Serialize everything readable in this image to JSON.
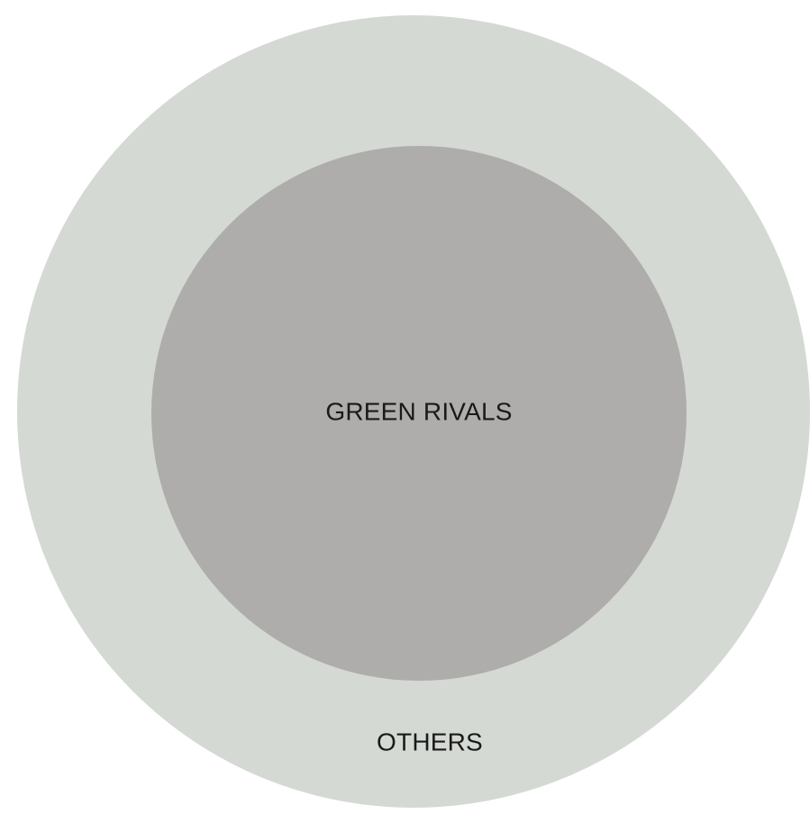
{
  "diagram": {
    "outer": {
      "label": "OTHERS",
      "color": "#d4d9d3"
    },
    "inner": {
      "label": "GREEN RIVALS",
      "color": "#aeadab"
    }
  }
}
